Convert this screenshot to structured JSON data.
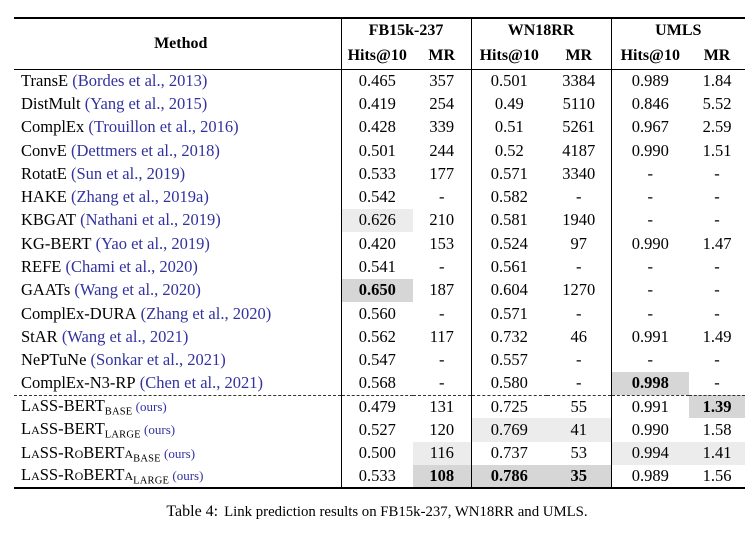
{
  "table": {
    "method_header": "Method",
    "groups": [
      {
        "label": "FB15k-237",
        "sub": [
          "Hits@10",
          "MR"
        ]
      },
      {
        "label": "WN18RR",
        "sub": [
          "Hits@10",
          "MR"
        ]
      },
      {
        "label": "UMLS",
        "sub": [
          "Hits@10",
          "MR"
        ]
      }
    ],
    "rows": [
      {
        "m": "TransE",
        "cite": "(Bordes et al., 2013)",
        "c": [
          {
            "v": "0.465"
          },
          {
            "v": "357"
          },
          {
            "v": "0.501"
          },
          {
            "v": "3384"
          },
          {
            "v": "0.989"
          },
          {
            "v": "1.84"
          }
        ]
      },
      {
        "m": "DistMult",
        "cite": "(Yang et al., 2015)",
        "c": [
          {
            "v": "0.419"
          },
          {
            "v": "254"
          },
          {
            "v": "0.49"
          },
          {
            "v": "5110"
          },
          {
            "v": "0.846"
          },
          {
            "v": "5.52"
          }
        ]
      },
      {
        "m": "ComplEx",
        "cite": "(Trouillon et al., 2016)",
        "c": [
          {
            "v": "0.428"
          },
          {
            "v": "339"
          },
          {
            "v": "0.51"
          },
          {
            "v": "5261"
          },
          {
            "v": "0.967"
          },
          {
            "v": "2.59"
          }
        ]
      },
      {
        "m": "ConvE",
        "cite": "(Dettmers et al., 2018)",
        "c": [
          {
            "v": "0.501"
          },
          {
            "v": "244"
          },
          {
            "v": "0.52"
          },
          {
            "v": "4187"
          },
          {
            "v": "0.990"
          },
          {
            "v": "1.51"
          }
        ]
      },
      {
        "m": "RotatE",
        "cite": "(Sun et al., 2019)",
        "c": [
          {
            "v": "0.533"
          },
          {
            "v": "177"
          },
          {
            "v": "0.571"
          },
          {
            "v": "3340"
          },
          {
            "v": "-"
          },
          {
            "v": "-"
          }
        ]
      },
      {
        "m": "HAKE",
        "cite": "(Zhang et al., 2019a)",
        "c": [
          {
            "v": "0.542"
          },
          {
            "v": "-"
          },
          {
            "v": "0.582"
          },
          {
            "v": "-"
          },
          {
            "v": "-"
          },
          {
            "v": "-"
          }
        ]
      },
      {
        "m": "KBGAT",
        "cite": "(Nathani et al., 2019)",
        "c": [
          {
            "v": "0.626",
            "h": 1
          },
          {
            "v": "210"
          },
          {
            "v": "0.581"
          },
          {
            "v": "1940"
          },
          {
            "v": "-"
          },
          {
            "v": "-"
          }
        ]
      },
      {
        "m": "KG-BERT",
        "cite": "(Yao et al., 2019)",
        "c": [
          {
            "v": "0.420"
          },
          {
            "v": "153"
          },
          {
            "v": "0.524"
          },
          {
            "v": "97"
          },
          {
            "v": "0.990"
          },
          {
            "v": "1.47"
          }
        ]
      },
      {
        "m": "REFE",
        "cite": "(Chami et al., 2020)",
        "c": [
          {
            "v": "0.541"
          },
          {
            "v": "-"
          },
          {
            "v": "0.561"
          },
          {
            "v": "-"
          },
          {
            "v": "-"
          },
          {
            "v": "-"
          }
        ]
      },
      {
        "m": "GAATs",
        "cite": "(Wang et al., 2020)",
        "c": [
          {
            "v": "0.650",
            "h": 2,
            "b": true
          },
          {
            "v": "187"
          },
          {
            "v": "0.604"
          },
          {
            "v": "1270"
          },
          {
            "v": "-"
          },
          {
            "v": "-"
          }
        ]
      },
      {
        "m": "ComplEx-DURA",
        "cite": "(Zhang et al., 2020)",
        "c": [
          {
            "v": "0.560"
          },
          {
            "v": "-"
          },
          {
            "v": "0.571"
          },
          {
            "v": "-"
          },
          {
            "v": "-"
          },
          {
            "v": "-"
          }
        ]
      },
      {
        "m": "StAR",
        "cite": "(Wang et al., 2021)",
        "c": [
          {
            "v": "0.562"
          },
          {
            "v": "117"
          },
          {
            "v": "0.732"
          },
          {
            "v": "46"
          },
          {
            "v": "0.991"
          },
          {
            "v": "1.49"
          }
        ]
      },
      {
        "m": "NePTuNe",
        "cite": "(Sonkar et al., 2021)",
        "c": [
          {
            "v": "0.547"
          },
          {
            "v": "-"
          },
          {
            "v": "0.557"
          },
          {
            "v": "-"
          },
          {
            "v": "-"
          },
          {
            "v": "-"
          }
        ]
      },
      {
        "m": "ComplEx-N3-RP",
        "cite": "(Chen et al., 2021)",
        "c": [
          {
            "v": "0.568"
          },
          {
            "v": "-"
          },
          {
            "v": "0.580"
          },
          {
            "v": "-"
          },
          {
            "v": "0.998",
            "h": 2,
            "b": true
          },
          {
            "v": "-"
          }
        ]
      },
      {
        "m": "LaSS-BERT",
        "sc": true,
        "sub": "BASE",
        "cite": "(ours)",
        "ours": true,
        "dashed_above": true,
        "c": [
          {
            "v": "0.479"
          },
          {
            "v": "131"
          },
          {
            "v": "0.725"
          },
          {
            "v": "55"
          },
          {
            "v": "0.991"
          },
          {
            "v": "1.39",
            "h": 2,
            "b": true
          }
        ]
      },
      {
        "m": "LaSS-BERT",
        "sc": true,
        "sub": "LARGE",
        "cite": "(ours)",
        "ours": true,
        "c": [
          {
            "v": "0.527"
          },
          {
            "v": "120"
          },
          {
            "v": "0.769",
            "h": 1
          },
          {
            "v": "41",
            "h": 1
          },
          {
            "v": "0.990"
          },
          {
            "v": "1.58"
          }
        ]
      },
      {
        "m": "LaSS-RoBERTa",
        "sc": true,
        "sub": "BASE",
        "cite": "(ours)",
        "ours": true,
        "c": [
          {
            "v": "0.500"
          },
          {
            "v": "116",
            "h": 1
          },
          {
            "v": "0.737"
          },
          {
            "v": "53"
          },
          {
            "v": "0.994",
            "h": 1
          },
          {
            "v": "1.41",
            "h": 1
          }
        ]
      },
      {
        "m": "LaSS-RoBERTa",
        "sc": true,
        "sub": "LARGE",
        "cite": "(ours)",
        "ours": true,
        "c": [
          {
            "v": "0.533"
          },
          {
            "v": "108",
            "h": 2,
            "b": true
          },
          {
            "v": "0.786",
            "h": 2,
            "b": true
          },
          {
            "v": "35",
            "h": 2,
            "b": true
          },
          {
            "v": "0.989"
          },
          {
            "v": "1.56"
          }
        ]
      }
    ]
  },
  "caption": {
    "label": "Table 4:",
    "text": "Link prediction results on FB15k-237, WN18RR and UMLS."
  },
  "colors": {
    "citation_blue": "#32329f",
    "shade_light": "#ececec",
    "shade_dark": "#d6d6d6",
    "rule_black": "#000000",
    "page_bg": "#ffffff"
  }
}
